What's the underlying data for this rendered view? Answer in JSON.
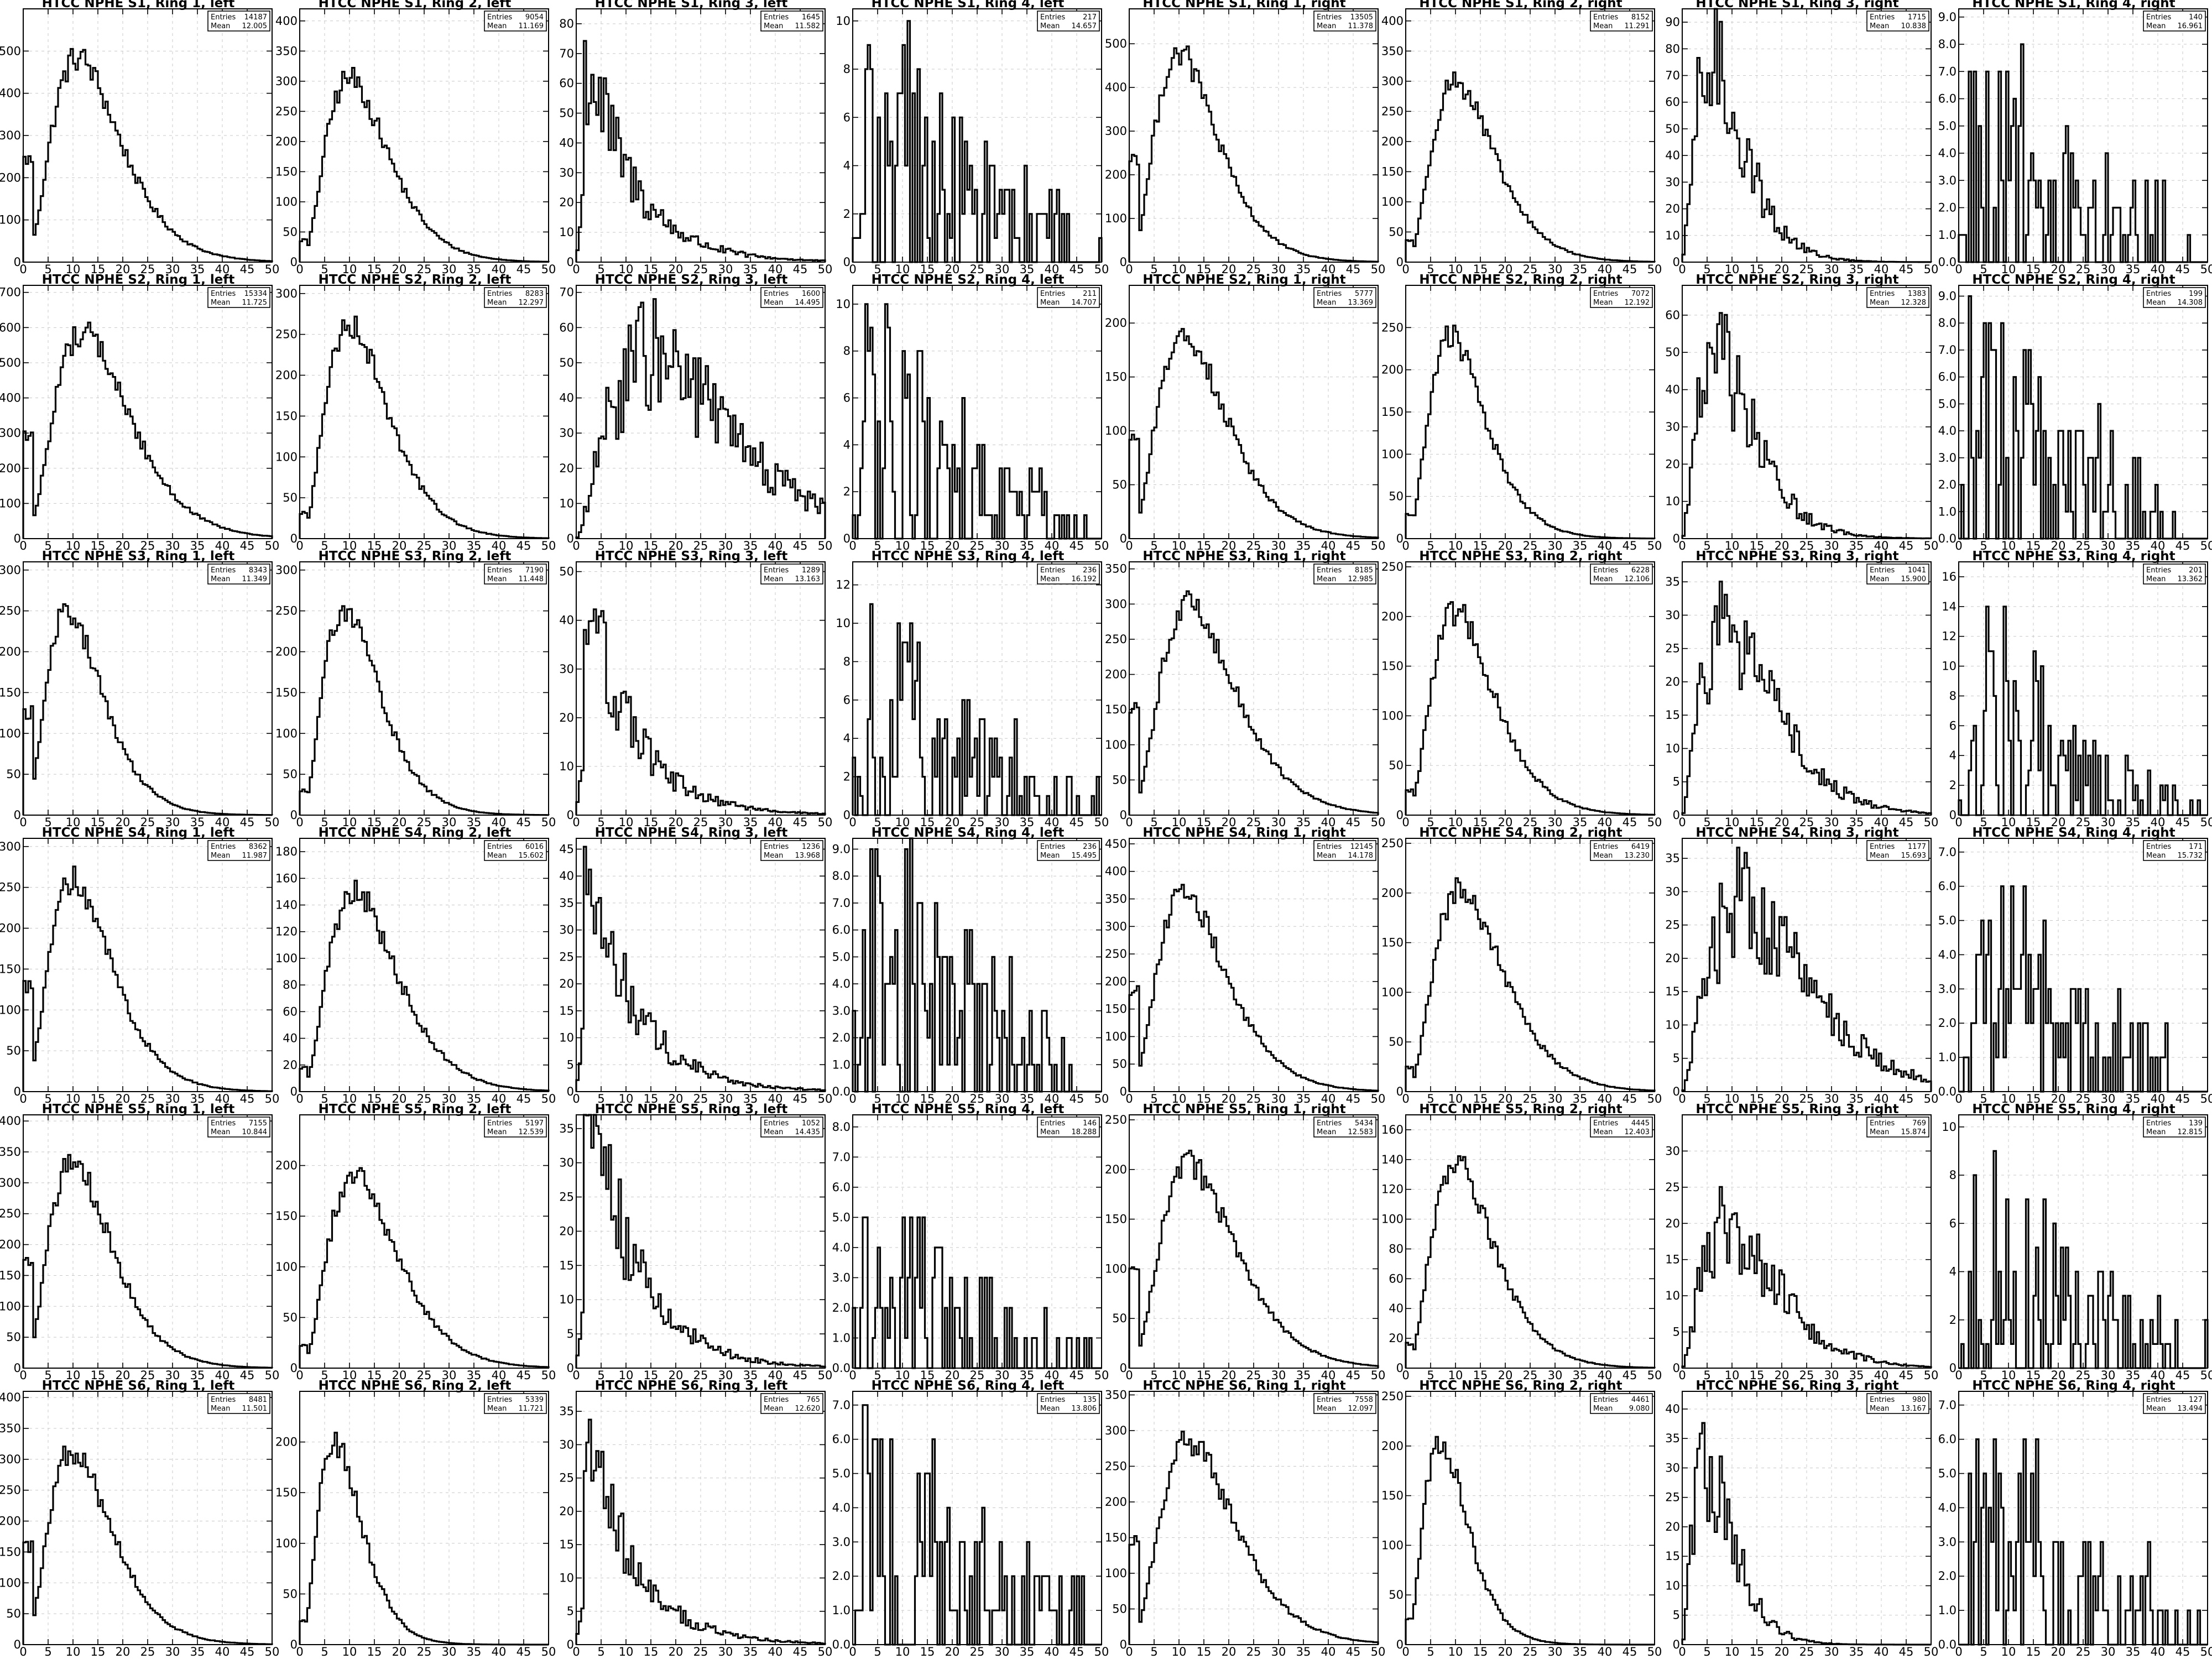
{
  "figure": {
    "layout": "6 rows x 8 columns of histograms",
    "background": "#ffffff",
    "line_color": "#000000"
  },
  "stat_labels": {
    "entries": "Entries",
    "mean": "Mean"
  },
  "chart_data": [
    {
      "type": "bar",
      "title": "HTCC NPHE S1, Ring 1, left",
      "entries": "14187",
      "mean": "12.005",
      "ylim": [
        0,
        600
      ],
      "yticks": [
        0,
        100,
        200,
        300,
        400,
        500
      ],
      "yprecision": 0,
      "peak_x": 11,
      "peak_y": 485,
      "shape": "ring1"
    },
    {
      "type": "bar",
      "title": "HTCC NPHE S1, Ring 2, left",
      "entries": "9054",
      "mean": "11.169",
      "ylim": [
        0,
        420
      ],
      "yticks": [
        0,
        50,
        100,
        150,
        200,
        250,
        300,
        350,
        400
      ],
      "yprecision": 0,
      "peak_x": 10,
      "peak_y": 305,
      "shape": "ring2"
    },
    {
      "type": "bar",
      "title": "HTCC NPHE S1, Ring 3, left",
      "entries": "1645",
      "mean": "11.582",
      "ylim": [
        0,
        85
      ],
      "yticks": [
        0,
        10,
        20,
        30,
        40,
        50,
        60,
        70,
        80
      ],
      "yprecision": 0,
      "peak_x": 3,
      "peak_y": 65,
      "shape": "decay"
    },
    {
      "type": "bar",
      "title": "HTCC NPHE S1, Ring 4, left",
      "entries": "217",
      "mean": "14.657",
      "ylim": [
        0,
        10.5
      ],
      "yticks": [
        0,
        2,
        4,
        6,
        8,
        10
      ],
      "yprecision": 0,
      "peak_x": 12,
      "peak_y": 5,
      "shape": "flat"
    },
    {
      "type": "bar",
      "title": "HTCC NPHE S1, Ring 1, right",
      "entries": "13505",
      "mean": "11.378",
      "ylim": [
        0,
        580
      ],
      "yticks": [
        0,
        100,
        200,
        300,
        400,
        500
      ],
      "yprecision": 0,
      "peak_x": 10,
      "peak_y": 480,
      "shape": "ring1"
    },
    {
      "type": "bar",
      "title": "HTCC NPHE S1, Ring 2, right",
      "entries": "8152",
      "mean": "11.291",
      "ylim": [
        0,
        420
      ],
      "yticks": [
        0,
        50,
        100,
        150,
        200,
        250,
        300,
        350,
        400
      ],
      "yprecision": 0,
      "peak_x": 10,
      "peak_y": 300,
      "shape": "ring2"
    },
    {
      "type": "bar",
      "title": "HTCC NPHE S1, Ring 3, right",
      "entries": "1715",
      "mean": "10.838",
      "ylim": [
        0,
        95
      ],
      "yticks": [
        0,
        10,
        20,
        30,
        40,
        50,
        60,
        70,
        80,
        90
      ],
      "yprecision": 0,
      "peak_x": 6,
      "peak_y": 75,
      "shape": "ring3"
    },
    {
      "type": "bar",
      "title": "HTCC NPHE S1, Ring 4, right",
      "entries": "140",
      "mean": "16.961",
      "ylim": [
        0,
        9.3
      ],
      "yticks": [
        0,
        1,
        2,
        3,
        4,
        5,
        6,
        7,
        8,
        9
      ],
      "yprecision": 1,
      "peak_x": 12,
      "peak_y": 4,
      "shape": "flat"
    },
    {
      "type": "bar",
      "title": "HTCC NPHE S2, Ring 1, left",
      "entries": "15334",
      "mean": "11.725",
      "ylim": [
        0,
        720
      ],
      "yticks": [
        0,
        100,
        200,
        300,
        400,
        500,
        600,
        700
      ],
      "yprecision": 0,
      "peak_x": 12,
      "peak_y": 590,
      "shape": "ring1"
    },
    {
      "type": "bar",
      "title": "HTCC NPHE S2, Ring 2, left",
      "entries": "8283",
      "mean": "12.297",
      "ylim": [
        0,
        310
      ],
      "yticks": [
        0,
        50,
        100,
        150,
        200,
        250,
        300
      ],
      "yprecision": 0,
      "peak_x": 10,
      "peak_y": 265,
      "shape": "ring2"
    },
    {
      "type": "bar",
      "title": "HTCC NPHE S2, Ring 3, left",
      "entries": "1600",
      "mean": "14.495",
      "ylim": [
        0,
        72
      ],
      "yticks": [
        0,
        10,
        20,
        30,
        40,
        50,
        60,
        70
      ],
      "yprecision": 0,
      "peak_x": 15,
      "peak_y": 52,
      "shape": "ring3"
    },
    {
      "type": "bar",
      "title": "HTCC NPHE S2, Ring 4, left",
      "entries": "211",
      "mean": "14.707",
      "ylim": [
        0,
        10.8
      ],
      "yticks": [
        0,
        2,
        4,
        6,
        8,
        10
      ],
      "yprecision": 0,
      "peak_x": 5,
      "peak_y": 6,
      "shape": "flat"
    },
    {
      "type": "bar",
      "title": "HTCC NPHE S2, Ring 1, right",
      "entries": "5777",
      "mean": "13.369",
      "ylim": [
        0,
        235
      ],
      "yticks": [
        0,
        50,
        100,
        150,
        200
      ],
      "yprecision": 0,
      "peak_x": 11,
      "peak_y": 190,
      "shape": "ring1"
    },
    {
      "type": "bar",
      "title": "HTCC NPHE S2, Ring 2, right",
      "entries": "7072",
      "mean": "12.192",
      "ylim": [
        0,
        300
      ],
      "yticks": [
        0,
        50,
        100,
        150,
        200,
        250
      ],
      "yprecision": 0,
      "peak_x": 9,
      "peak_y": 240,
      "shape": "ring2"
    },
    {
      "type": "bar",
      "title": "HTCC NPHE S2, Ring 3, right",
      "entries": "1383",
      "mean": "12.328",
      "ylim": [
        0,
        68
      ],
      "yticks": [
        0,
        10,
        20,
        30,
        40,
        50,
        60
      ],
      "yprecision": 0,
      "peak_x": 7,
      "peak_y": 48,
      "shape": "ring3"
    },
    {
      "type": "bar",
      "title": "HTCC NPHE S2, Ring 4, right",
      "entries": "199",
      "mean": "14.308",
      "ylim": [
        0,
        9.4
      ],
      "yticks": [
        0,
        1,
        2,
        3,
        4,
        5,
        6,
        7,
        8,
        9
      ],
      "yprecision": 1,
      "peak_x": 8,
      "peak_y": 5,
      "shape": "flat"
    },
    {
      "type": "bar",
      "title": "HTCC NPHE S3, Ring 1, left",
      "entries": "8343",
      "mean": "11.349",
      "ylim": [
        0,
        310
      ],
      "yticks": [
        0,
        50,
        100,
        150,
        200,
        250,
        300
      ],
      "yprecision": 0,
      "peak_x": 9,
      "peak_y": 250,
      "shape": "ring1"
    },
    {
      "type": "bar",
      "title": "HTCC NPHE S3, Ring 2, left",
      "entries": "7190",
      "mean": "11.448",
      "ylim": [
        0,
        310
      ],
      "yticks": [
        0,
        50,
        100,
        150,
        200,
        250,
        300
      ],
      "yprecision": 0,
      "peak_x": 9,
      "peak_y": 255,
      "shape": "ring2"
    },
    {
      "type": "bar",
      "title": "HTCC NPHE S3, Ring 3, left",
      "entries": "1289",
      "mean": "13.163",
      "ylim": [
        0,
        52
      ],
      "yticks": [
        0,
        10,
        20,
        30,
        40,
        50
      ],
      "yprecision": 0,
      "peak_x": 3,
      "peak_y": 42,
      "shape": "decay"
    },
    {
      "type": "bar",
      "title": "HTCC NPHE S3, Ring 4, left",
      "entries": "236",
      "mean": "16.192",
      "ylim": [
        0,
        13.2
      ],
      "yticks": [
        0,
        2,
        4,
        6,
        8,
        10,
        12
      ],
      "yprecision": 0,
      "peak_x": 10,
      "peak_y": 6,
      "shape": "flat"
    },
    {
      "type": "bar",
      "title": "HTCC NPHE S3, Ring 1, right",
      "entries": "8185",
      "mean": "12.985",
      "ylim": [
        0,
        360
      ],
      "yticks": [
        0,
        50,
        100,
        150,
        200,
        250,
        300,
        350
      ],
      "yprecision": 0,
      "peak_x": 12,
      "peak_y": 300,
      "shape": "ring1"
    },
    {
      "type": "bar",
      "title": "HTCC NPHE S3, Ring 2, right",
      "entries": "6228",
      "mean": "12.106",
      "ylim": [
        0,
        255
      ],
      "yticks": [
        0,
        50,
        100,
        150,
        200,
        250
      ],
      "yprecision": 0,
      "peak_x": 10,
      "peak_y": 205,
      "shape": "ring2"
    },
    {
      "type": "bar",
      "title": "HTCC NPHE S3, Ring 3, right",
      "entries": "1041",
      "mean": "15.900",
      "ylim": [
        0,
        38
      ],
      "yticks": [
        0,
        5,
        10,
        15,
        20,
        25,
        30,
        35
      ],
      "yprecision": 0,
      "peak_x": 9,
      "peak_y": 28,
      "shape": "ring3"
    },
    {
      "type": "bar",
      "title": "HTCC NPHE S3, Ring 4, right",
      "entries": "201",
      "mean": "13.362",
      "ylim": [
        0,
        17
      ],
      "yticks": [
        0,
        2,
        4,
        6,
        8,
        10,
        12,
        14,
        16
      ],
      "yprecision": 0,
      "peak_x": 6,
      "peak_y": 8,
      "shape": "flat"
    },
    {
      "type": "bar",
      "title": "HTCC NPHE S4, Ring 1, left",
      "entries": "8362",
      "mean": "11.987",
      "ylim": [
        0,
        310
      ],
      "yticks": [
        0,
        50,
        100,
        150,
        200,
        250,
        300
      ],
      "yprecision": 0,
      "peak_x": 10,
      "peak_y": 260,
      "shape": "ring1"
    },
    {
      "type": "bar",
      "title": "HTCC NPHE S4, Ring 2, left",
      "entries": "6016",
      "mean": "15.602",
      "ylim": [
        0,
        190
      ],
      "yticks": [
        0,
        20,
        40,
        60,
        80,
        100,
        120,
        140,
        160,
        180
      ],
      "yprecision": 0,
      "peak_x": 11,
      "peak_y": 150,
      "shape": "ring2"
    },
    {
      "type": "bar",
      "title": "HTCC NPHE S4, Ring 3, left",
      "entries": "1236",
      "mean": "13.968",
      "ylim": [
        0,
        47
      ],
      "yticks": [
        0,
        5,
        10,
        15,
        20,
        25,
        30,
        35,
        40,
        45
      ],
      "yprecision": 0,
      "peak_x": 5,
      "peak_y": 33,
      "shape": "decay"
    },
    {
      "type": "bar",
      "title": "HTCC NPHE S4, Ring 4, left",
      "entries": "236",
      "mean": "15.495",
      "ylim": [
        0,
        9.4
      ],
      "yticks": [
        0,
        1,
        2,
        3,
        4,
        5,
        6,
        7,
        8,
        9
      ],
      "yprecision": 1,
      "peak_x": 12,
      "peak_y": 5,
      "shape": "flat"
    },
    {
      "type": "bar",
      "title": "HTCC NPHE S4, Ring 1, right",
      "entries": "12145",
      "mean": "14.178",
      "ylim": [
        0,
        460
      ],
      "yticks": [
        0,
        50,
        100,
        150,
        200,
        250,
        300,
        350,
        400,
        450
      ],
      "yprecision": 0,
      "peak_x": 11,
      "peak_y": 360,
      "shape": "ring1"
    },
    {
      "type": "bar",
      "title": "HTCC NPHE S4, Ring 2, right",
      "entries": "6419",
      "mean": "13.230",
      "ylim": [
        0,
        255
      ],
      "yticks": [
        0,
        50,
        100,
        150,
        200,
        250
      ],
      "yprecision": 0,
      "peak_x": 11,
      "peak_y": 205,
      "shape": "ring2"
    },
    {
      "type": "bar",
      "title": "HTCC NPHE S4, Ring 3, right",
      "entries": "1177",
      "mean": "15.693",
      "ylim": [
        0,
        38
      ],
      "yticks": [
        0,
        5,
        10,
        15,
        20,
        25,
        30,
        35
      ],
      "yprecision": 0,
      "peak_x": 12,
      "peak_y": 28,
      "shape": "ring3"
    },
    {
      "type": "bar",
      "title": "HTCC NPHE S4, Ring 4, right",
      "entries": "171",
      "mean": "15.732",
      "ylim": [
        0,
        7.4
      ],
      "yticks": [
        0,
        1,
        2,
        3,
        4,
        5,
        6,
        7
      ],
      "yprecision": 1,
      "peak_x": 8,
      "peak_y": 4,
      "shape": "flat"
    },
    {
      "type": "bar",
      "title": "HTCC NPHE S5, Ring 1, left",
      "entries": "7155",
      "mean": "10.844",
      "ylim": [
        0,
        410
      ],
      "yticks": [
        0,
        50,
        100,
        150,
        200,
        250,
        300,
        350,
        400
      ],
      "yprecision": 0,
      "peak_x": 10,
      "peak_y": 335,
      "shape": "ring1"
    },
    {
      "type": "bar",
      "title": "HTCC NPHE S5, Ring 2, left",
      "entries": "5197",
      "mean": "12.539",
      "ylim": [
        0,
        250
      ],
      "yticks": [
        0,
        50,
        100,
        150,
        200
      ],
      "yprecision": 0,
      "peak_x": 11,
      "peak_y": 190,
      "shape": "ring2"
    },
    {
      "type": "bar",
      "title": "HTCC NPHE S5, Ring 3, left",
      "entries": "1052",
      "mean": "14.435",
      "ylim": [
        0,
        37
      ],
      "yticks": [
        0,
        5,
        10,
        15,
        20,
        25,
        30,
        35
      ],
      "yprecision": 0,
      "peak_x": 6,
      "peak_y": 28,
      "shape": "decay"
    },
    {
      "type": "bar",
      "title": "HTCC NPHE S5, Ring 4, left",
      "entries": "146",
      "mean": "18.288",
      "ylim": [
        0,
        8.4
      ],
      "yticks": [
        0,
        1,
        2,
        3,
        4,
        5,
        6,
        7,
        8
      ],
      "yprecision": 1,
      "peak_x": 12,
      "peak_y": 3,
      "shape": "flat"
    },
    {
      "type": "bar",
      "title": "HTCC NPHE S5, Ring 1, right",
      "entries": "5434",
      "mean": "12.583",
      "ylim": [
        0,
        255
      ],
      "yticks": [
        0,
        50,
        100,
        150,
        200,
        250
      ],
      "yprecision": 0,
      "peak_x": 12,
      "peak_y": 205,
      "shape": "ring1"
    },
    {
      "type": "bar",
      "title": "HTCC NPHE S5, Ring 2, right",
      "entries": "4445",
      "mean": "12.403",
      "ylim": [
        0,
        170
      ],
      "yticks": [
        0,
        20,
        40,
        60,
        80,
        100,
        120,
        140,
        160
      ],
      "yprecision": 0,
      "peak_x": 10,
      "peak_y": 138,
      "shape": "ring2"
    },
    {
      "type": "bar",
      "title": "HTCC NPHE S5, Ring 3, right",
      "entries": "769",
      "mean": "15.874",
      "ylim": [
        0,
        35
      ],
      "yticks": [
        0,
        5,
        10,
        15,
        20,
        25,
        30
      ],
      "yprecision": 0,
      "peak_x": 9,
      "peak_y": 20,
      "shape": "ring3"
    },
    {
      "type": "bar",
      "title": "HTCC NPHE S5, Ring 4, right",
      "entries": "139",
      "mean": "12.815",
      "ylim": [
        0,
        10.5
      ],
      "yticks": [
        0,
        2,
        4,
        6,
        8,
        10
      ],
      "yprecision": 0,
      "peak_x": 10,
      "peak_y": 5,
      "shape": "flat"
    },
    {
      "type": "bar",
      "title": "HTCC NPHE S6, Ring 1, left",
      "entries": "8481",
      "mean": "11.501",
      "ylim": [
        0,
        410
      ],
      "yticks": [
        0,
        50,
        100,
        150,
        200,
        250,
        300,
        350,
        400
      ],
      "yprecision": 0,
      "peak_x": 10,
      "peak_y": 315,
      "shape": "ring1"
    },
    {
      "type": "bar",
      "title": "HTCC NPHE S6, Ring 2, left",
      "entries": "5339",
      "mean": "11.721",
      "ylim": [
        0,
        250
      ],
      "yticks": [
        0,
        50,
        100,
        150,
        200
      ],
      "yprecision": 0,
      "peak_x": 7,
      "peak_y": 200,
      "shape": "ring2"
    },
    {
      "type": "bar",
      "title": "HTCC NPHE S6, Ring 3, left",
      "entries": "765",
      "mean": "12.620",
      "ylim": [
        0,
        38
      ],
      "yticks": [
        0,
        5,
        10,
        15,
        20,
        25,
        30,
        35
      ],
      "yprecision": 0,
      "peak_x": 5,
      "peak_y": 24,
      "shape": "decay"
    },
    {
      "type": "bar",
      "title": "HTCC NPHE S6, Ring 4, left",
      "entries": "135",
      "mean": "13.806",
      "ylim": [
        0,
        7.4
      ],
      "yticks": [
        0,
        1,
        2,
        3,
        4,
        5,
        6,
        7
      ],
      "yprecision": 1,
      "peak_x": 8,
      "peak_y": 4,
      "shape": "flat"
    },
    {
      "type": "bar",
      "title": "HTCC NPHE S6, Ring 1, right",
      "entries": "7558",
      "mean": "12.097",
      "ylim": [
        0,
        355
      ],
      "yticks": [
        0,
        50,
        100,
        150,
        200,
        250,
        300,
        350
      ],
      "yprecision": 0,
      "peak_x": 12,
      "peak_y": 285,
      "shape": "ring1"
    },
    {
      "type": "bar",
      "title": "HTCC NPHE S6, Ring 2, right",
      "entries": "4461",
      "mean": "9.080",
      "ylim": [
        0,
        255
      ],
      "yticks": [
        0,
        50,
        100,
        150,
        200,
        250
      ],
      "yprecision": 0,
      "peak_x": 7,
      "peak_y": 205,
      "shape": "ring2"
    },
    {
      "type": "bar",
      "title": "HTCC NPHE S6, Ring 3, right",
      "entries": "980",
      "mean": "13.167",
      "ylim": [
        0,
        43
      ],
      "yticks": [
        0,
        5,
        10,
        15,
        20,
        25,
        30,
        35,
        40
      ],
      "yprecision": 0,
      "peak_x": 5,
      "peak_y": 30,
      "shape": "ring3"
    },
    {
      "type": "bar",
      "title": "HTCC NPHE S6, Ring 4, right",
      "entries": "127",
      "mean": "13.494",
      "ylim": [
        0,
        7.4
      ],
      "yticks": [
        0,
        1,
        2,
        3,
        4,
        5,
        6,
        7
      ],
      "yprecision": 1,
      "peak_x": 8,
      "peak_y": 4,
      "shape": "flat"
    }
  ],
  "x_axis": {
    "range": [
      0,
      50
    ],
    "ticks": [
      0,
      5,
      10,
      15,
      20,
      25,
      30,
      35,
      40,
      45,
      50
    ],
    "bins": 100
  }
}
